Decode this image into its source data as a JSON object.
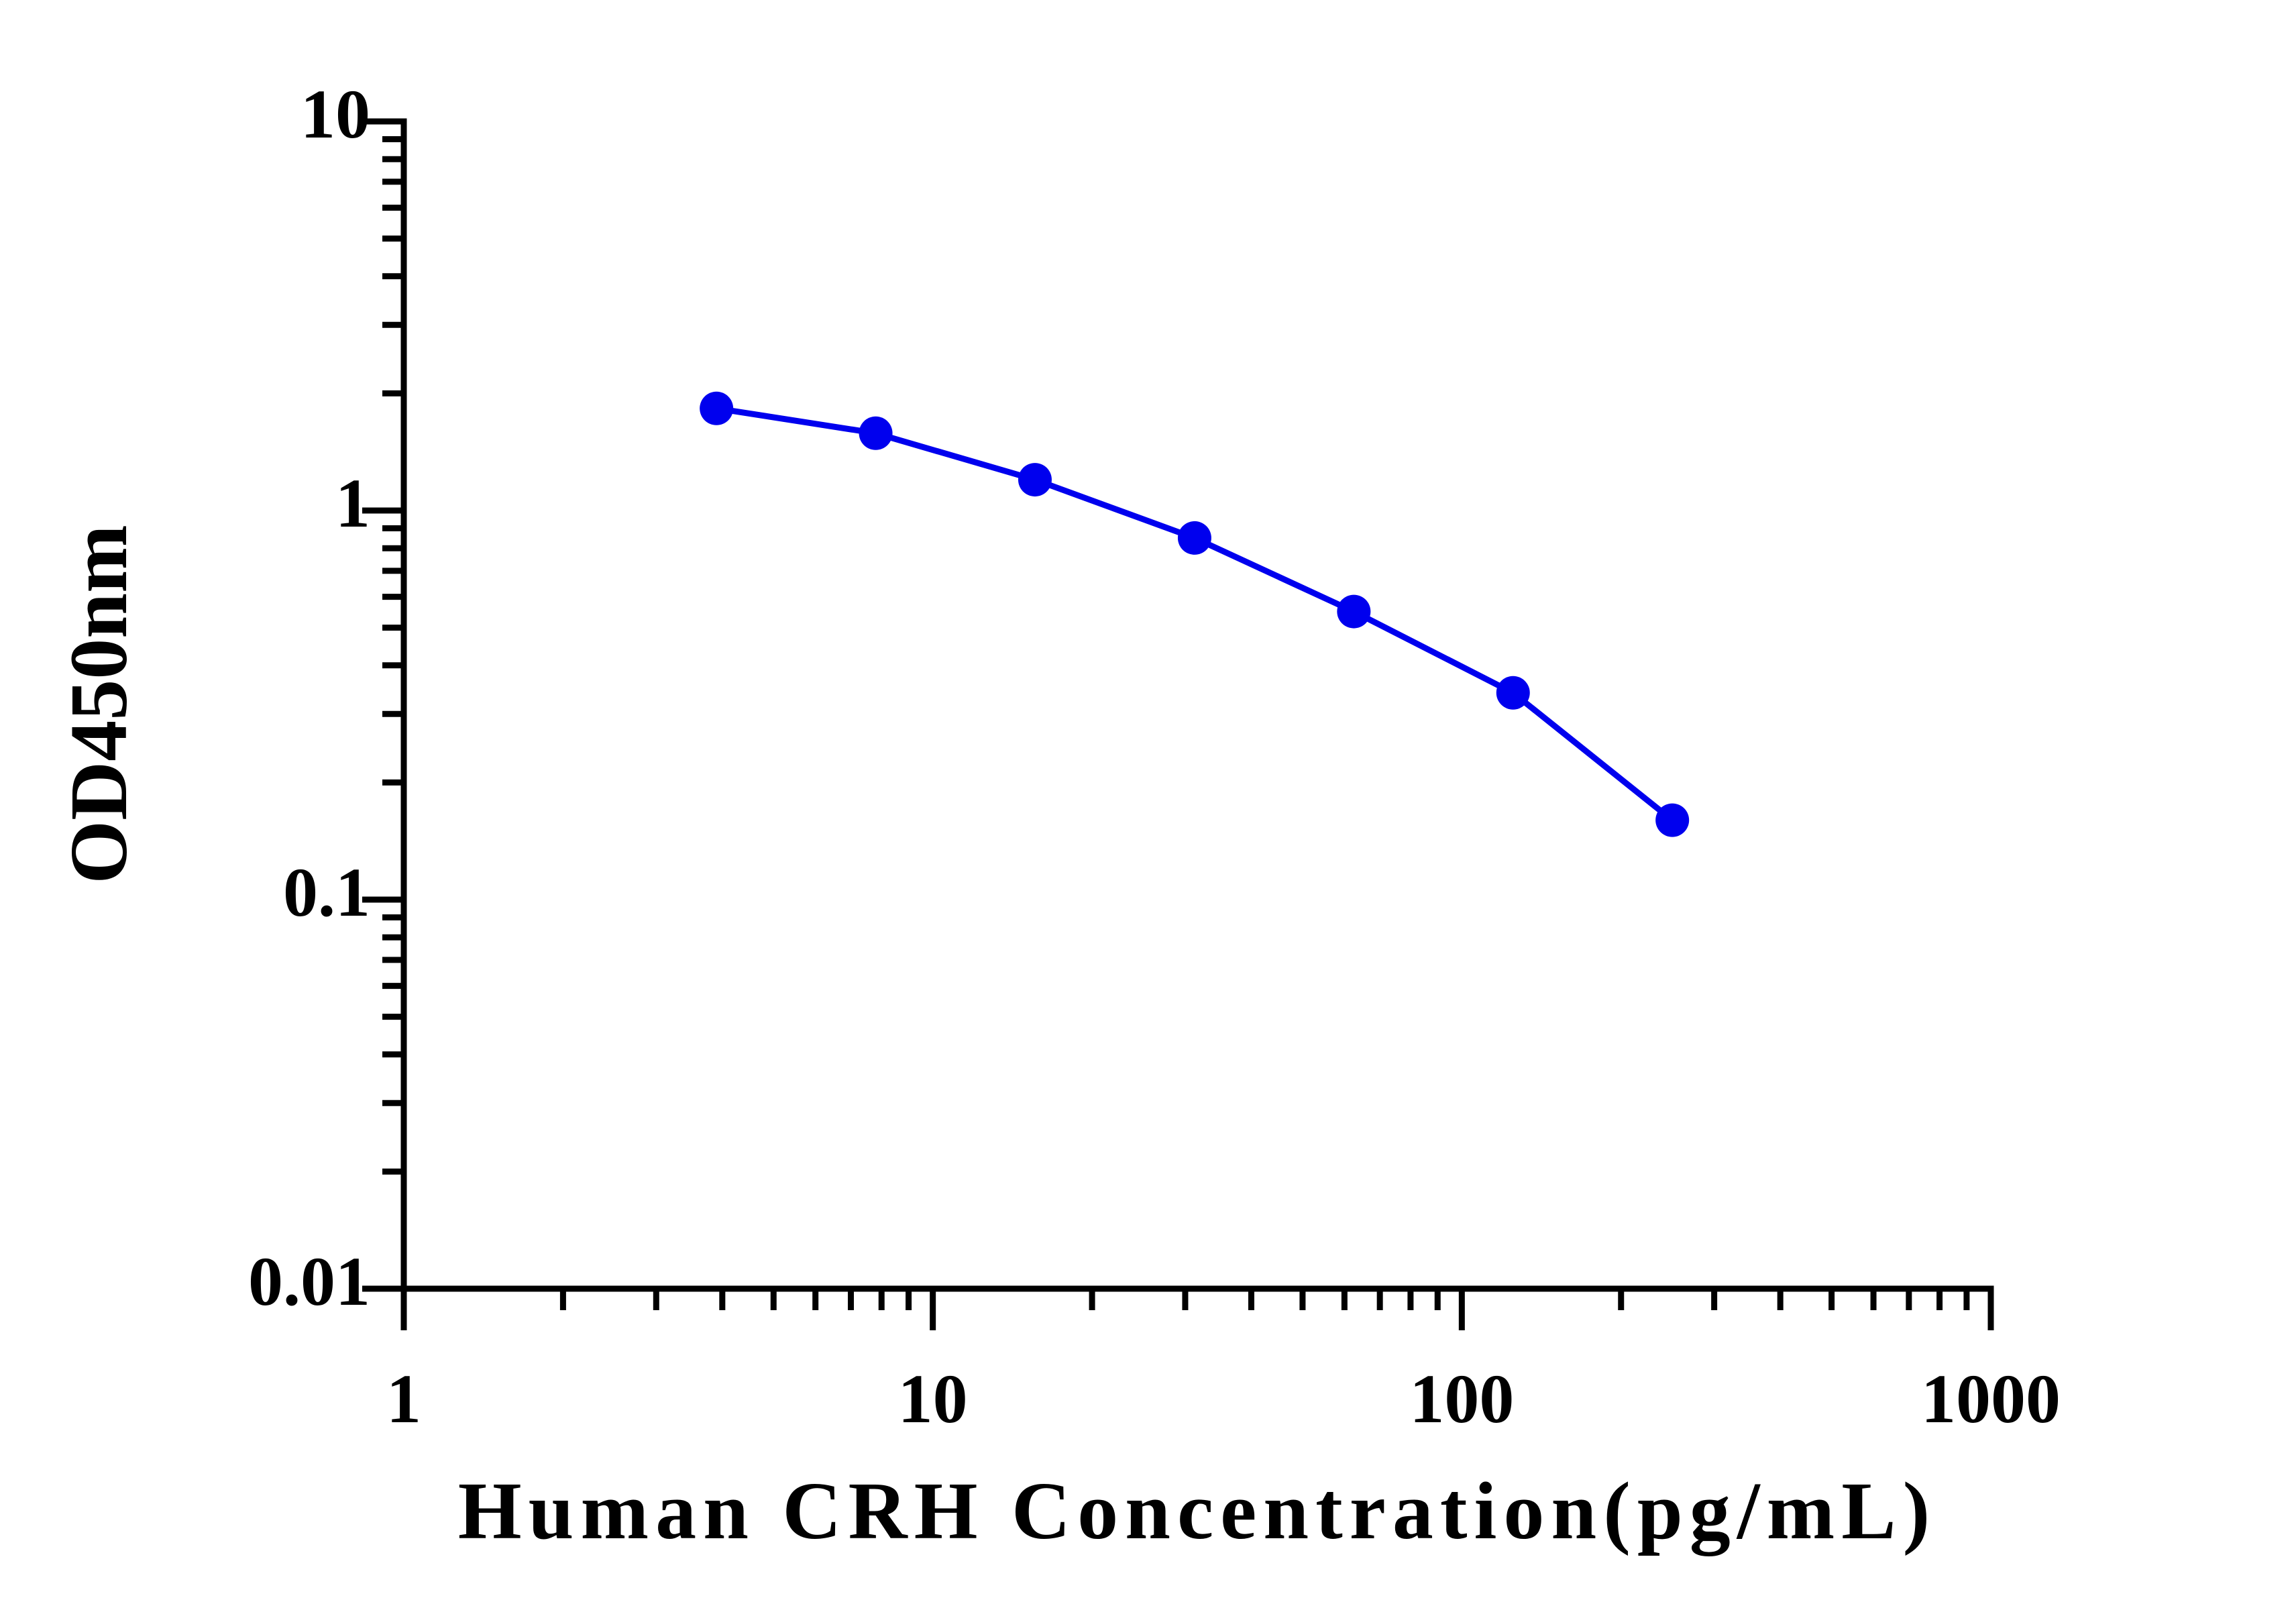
{
  "chart_data": {
    "type": "line",
    "x_label": "Human CRH Concentration(pg/mL)",
    "y_label": "OD450nm",
    "x": [
      3.9,
      7.8,
      15.6,
      31.25,
      62.5,
      125,
      250
    ],
    "series": [
      {
        "color": "#0000ee",
        "values": [
          1.83,
          1.58,
          1.2,
          0.85,
          0.55,
          0.34,
          0.16
        ]
      }
    ],
    "xlim": [
      1,
      1000
    ],
    "ylim": [
      0.01,
      10
    ],
    "xticks": [
      1,
      10,
      100,
      1000
    ],
    "yticks": [
      0.01,
      0.1,
      1,
      10
    ],
    "xscale": "log",
    "yscale": "log",
    "markers": true
  }
}
